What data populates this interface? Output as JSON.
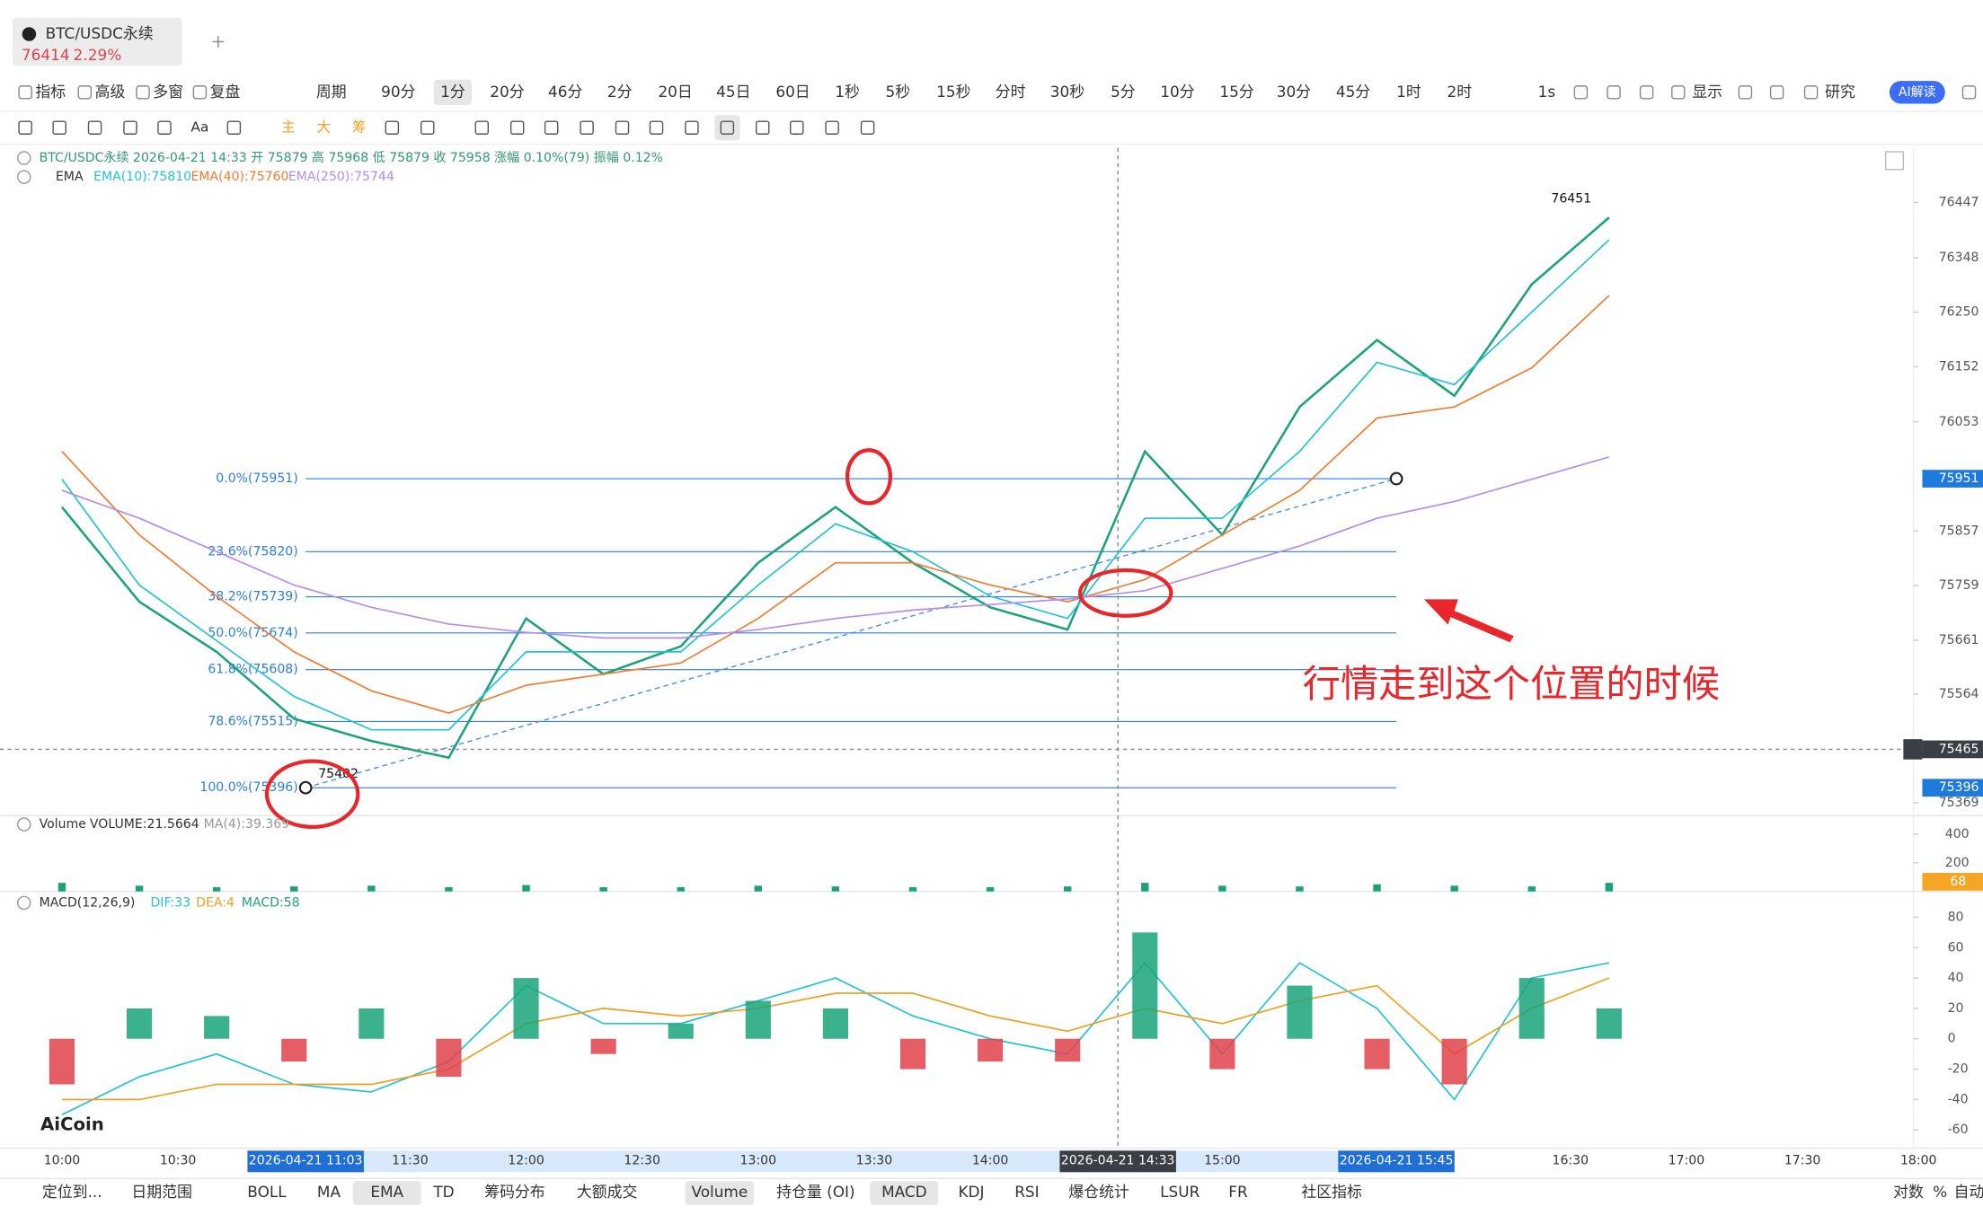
{
  "tab": {
    "symbol": "BTC/USDC永续",
    "price": "76414",
    "change": "2.29%"
  },
  "toolbar": {
    "items": [
      "指标",
      "高级",
      "多窗",
      "复盘",
      "周期",
      "90分",
      "1分",
      "20分",
      "46分",
      "2分",
      "20日",
      "45日",
      "60日",
      "1秒",
      "5秒",
      "15秒",
      "分时",
      "30秒",
      "5分",
      "10分",
      "15分",
      "30分",
      "45分",
      "1时",
      "2时",
      "1s",
      "显示",
      "研究",
      "AI解读"
    ],
    "selected": "1分"
  },
  "drawing_tools": [
    "Aa",
    "主",
    "大",
    "筹"
  ],
  "bottom_bar": {
    "items": [
      "定位到...",
      "日期范围",
      "BOLL",
      "MA",
      "EMA",
      "TD",
      "筹码分布",
      "大额成交",
      "Volume",
      "持仓量 (OI)",
      "MACD",
      "KDJ",
      "RSI",
      "爆仓统计",
      "LSUR",
      "FR",
      "社区指标",
      "对数",
      "%",
      "自动"
    ],
    "selected": [
      "EMA",
      "Volume",
      "MACD"
    ]
  },
  "watermark": "AiCoin",
  "chart_data": [
    {
      "type": "line",
      "info": "BTC/USDC永续  2026-04-21 14:33  开 75879  高 75968  低 75879  收 75958  涨幅 0.10%(79)  振幅 0.12%",
      "legend_title": "EMA",
      "x": [
        "10:00",
        "10:20",
        "10:40",
        "11:00",
        "11:20",
        "11:40",
        "12:00",
        "12:20",
        "12:40",
        "13:00",
        "13:20",
        "13:40",
        "14:00",
        "14:20",
        "14:40",
        "15:00",
        "15:20",
        "15:40",
        "16:00",
        "16:20",
        "16:40"
      ],
      "series": [
        {
          "color": "#1aa37a",
          "values": [
            75900,
            75730,
            75640,
            75520,
            75480,
            75450,
            75700,
            75600,
            75650,
            75800,
            75900,
            75800,
            75720,
            75680,
            76000,
            75850,
            76080,
            76200,
            76100,
            76300,
            76420
          ]
        },
        {
          "name": "EMA(10):75810",
          "color": "#22c3d3",
          "values": [
            75950,
            75760,
            75660,
            75560,
            75500,
            75500,
            75640,
            75640,
            75640,
            75760,
            75870,
            75820,
            75740,
            75700,
            75880,
            75880,
            76000,
            76160,
            76120,
            76250,
            76380
          ]
        },
        {
          "name": "EMA(40):75760",
          "color": "#f07c30",
          "values": [
            76000,
            75850,
            75740,
            75640,
            75570,
            75530,
            75580,
            75600,
            75620,
            75700,
            75800,
            75800,
            75760,
            75730,
            75770,
            75850,
            75930,
            76060,
            76080,
            76150,
            76280
          ]
        },
        {
          "name": "EMA(250):75744",
          "color": "#b38cf0",
          "values": [
            75930,
            75880,
            75820,
            75760,
            75720,
            75690,
            75675,
            75665,
            75665,
            75680,
            75700,
            75715,
            75725,
            75735,
            75750,
            75790,
            75830,
            75880,
            75910,
            75950,
            75990
          ]
        }
      ],
      "ylim": [
        75346,
        76545
      ],
      "yticks": [
        76447,
        76348,
        76250,
        76152,
        76053,
        75857,
        75759,
        75661,
        75564,
        75369
      ],
      "price_markers": [
        {
          "value": 75951,
          "color": "#1f7ae0"
        },
        {
          "value": 75465,
          "color": "#3a3f47"
        },
        {
          "value": 75396,
          "color": "#1f7ae0"
        }
      ],
      "fib_x": [
        "11:03",
        "15:45"
      ],
      "fib_levels": [
        {
          "value": 75951,
          "label": "0.0%(75951)"
        },
        {
          "value": 75820,
          "label": "23.6%(75820)"
        },
        {
          "value": 75739,
          "label": "38.2%(75739)"
        },
        {
          "value": 75674,
          "label": "50.0%(75674)"
        },
        {
          "value": 75608,
          "label": "61.8%(75608)"
        },
        {
          "value": 75515,
          "label": "78.6%(75515)"
        },
        {
          "value": 75396,
          "label": "100.0%(75396)"
        }
      ],
      "high": {
        "x": "16:40",
        "value": 76451
      },
      "low": {
        "x": "11:03",
        "value": 75402
      },
      "annotation": "行情走到这个位置的时候",
      "xticks": [
        "10:00",
        "10:30",
        "11:30",
        "12:00",
        "12:30",
        "13:00",
        "13:30",
        "14:00",
        "15:00",
        "16:30",
        "17:00",
        "17:30",
        "18:00"
      ],
      "x_highlights": [
        {
          "x": "11:03",
          "label": "2026-04-21 11:03"
        },
        {
          "x": "14:33",
          "label": "2026-04-21 14:33"
        },
        {
          "x": "15:45",
          "label": "2026-04-21 15:45"
        }
      ]
    },
    {
      "type": "bar",
      "title": "Volume",
      "legend": [
        "VOLUME:21.5664",
        "MA(4):39.369"
      ],
      "color": "#1aa37a",
      "values": [
        60,
        40,
        30,
        35,
        40,
        30,
        45,
        30,
        30,
        40,
        35,
        30,
        30,
        35,
        60,
        40,
        35,
        50,
        40,
        35,
        60
      ],
      "ylim": [
        0,
        530
      ],
      "yticks": [
        200,
        400
      ],
      "last_value": 68
    },
    {
      "type": "bar",
      "title": "MACD(12,26,9)",
      "series": [
        {
          "name": "DIF:33",
          "type": "line",
          "color": "#22c3d3",
          "values": [
            -50,
            -25,
            -10,
            -30,
            -35,
            -15,
            35,
            10,
            10,
            25,
            40,
            15,
            0,
            -10,
            50,
            -10,
            50,
            20,
            -40,
            40,
            50
          ]
        },
        {
          "name": "DEA:4",
          "type": "line",
          "color": "#f0a020",
          "values": [
            -40,
            -40,
            -30,
            -30,
            -30,
            -20,
            10,
            20,
            15,
            20,
            30,
            30,
            15,
            5,
            20,
            10,
            25,
            35,
            -10,
            20,
            40
          ]
        },
        {
          "name": "MACD:58",
          "type": "bar",
          "color": "#1aa37a",
          "negative_color": "#e0424b",
          "values": [
            -30,
            20,
            15,
            -15,
            20,
            -25,
            40,
            -10,
            10,
            25,
            20,
            -20,
            -15,
            -15,
            70,
            -20,
            35,
            -20,
            -30,
            40,
            20
          ]
        }
      ],
      "ylim": [
        -72,
        97
      ],
      "yticks": [
        -60,
        -40,
        -20,
        0,
        20,
        40,
        60,
        80
      ]
    }
  ]
}
